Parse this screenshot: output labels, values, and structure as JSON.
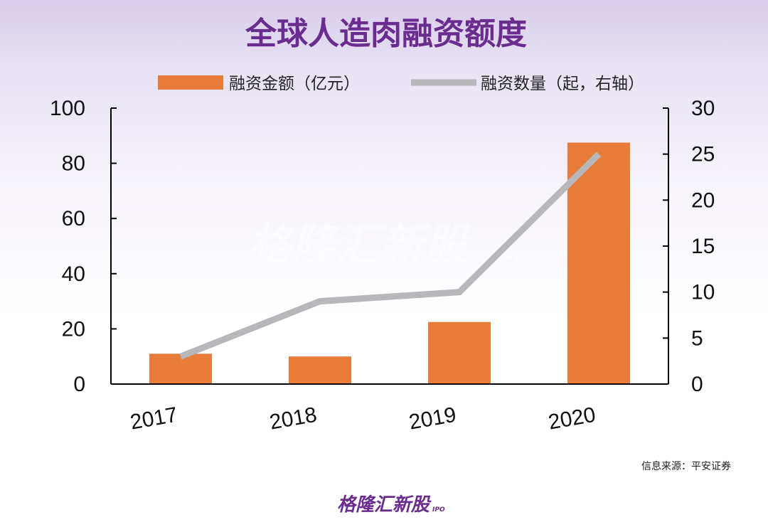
{
  "chart_data": {
    "type": "bar",
    "title": "全球人造肉融资额度",
    "categories": [
      "2017",
      "2018",
      "2019",
      "2020"
    ],
    "series": [
      {
        "name": "融资金额（亿元）",
        "type": "bar",
        "axis": "left",
        "values": [
          11,
          10,
          22.5,
          87.5
        ],
        "color": "#e87c3a"
      },
      {
        "name": "融资数量（起，右轴）",
        "type": "line",
        "axis": "right",
        "values": [
          3,
          9,
          10,
          25
        ],
        "color": "#b8b8bc"
      }
    ],
    "y_left": {
      "min": 0,
      "max": 100,
      "ticks": [
        "0",
        "20",
        "40",
        "60",
        "80",
        "100"
      ]
    },
    "y_right": {
      "min": 0,
      "max": 30,
      "ticks": [
        "0",
        "5",
        "10",
        "15",
        "20",
        "25",
        "30"
      ]
    },
    "legend_placement": "top",
    "grid": false
  },
  "source": "信息来源：平安证券",
  "watermark": {
    "main": "格隆汇新股",
    "sub": "IPO"
  },
  "logo": {
    "main": "格隆汇新股",
    "sub": "IPO"
  }
}
